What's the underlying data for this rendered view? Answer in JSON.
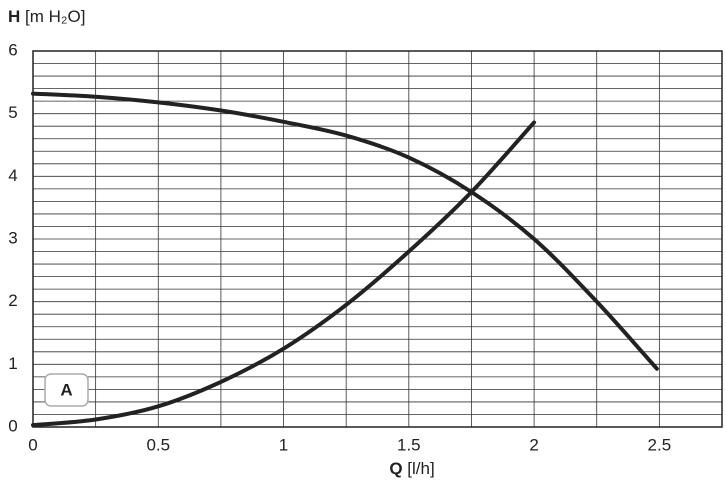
{
  "chart_data": {
    "type": "line",
    "y_label_symbol": "H",
    "y_label": "[m H₂O]",
    "x_label_symbol": "Q",
    "x_label": "[l/h]",
    "annotation": "A",
    "xlim": [
      0,
      2.75
    ],
    "ylim": [
      0,
      6
    ],
    "xticks": [
      0,
      0.5,
      1,
      1.5,
      2,
      2.5
    ],
    "yticks": [
      0,
      1,
      2,
      3,
      4,
      5,
      6
    ],
    "grid": true,
    "x_minor_step": 0.25,
    "y_minor_step": 0.2,
    "series": [
      {
        "color": "#222222",
        "x": [
          0,
          0.25,
          0.5,
          0.75,
          1,
          1.25,
          1.5,
          1.75,
          2,
          2.25,
          2.49
        ],
        "values": [
          5.32,
          5.27,
          5.18,
          5.05,
          4.87,
          4.65,
          4.3,
          3.75,
          3.0,
          2.0,
          0.93
        ]
      },
      {
        "color": "#222222",
        "x": [
          0,
          0.25,
          0.5,
          0.75,
          1,
          1.25,
          1.5,
          1.75,
          2
        ],
        "values": [
          0.03,
          0.12,
          0.33,
          0.72,
          1.25,
          1.95,
          2.8,
          3.75,
          4.86
        ]
      }
    ]
  }
}
